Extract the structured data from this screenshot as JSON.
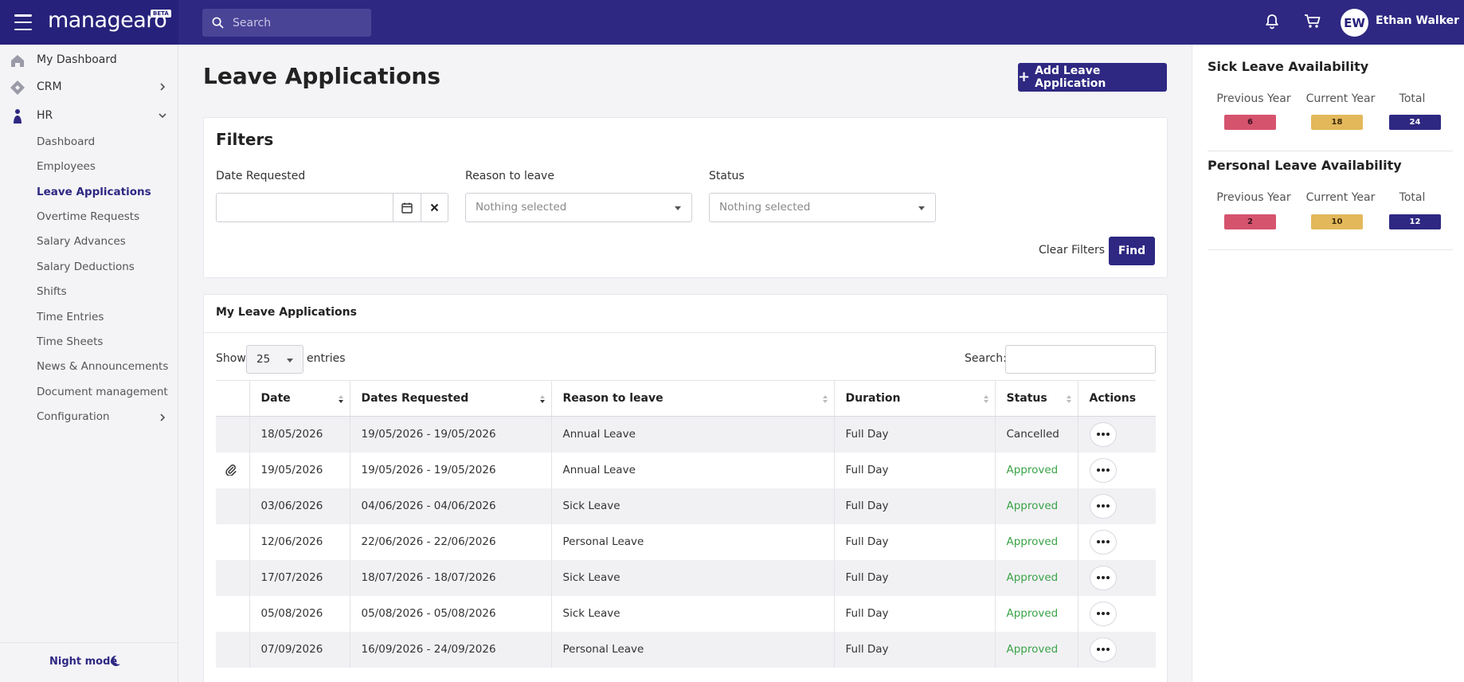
{
  "app": {
    "brand": "managearo",
    "beta": "BETA",
    "search_placeholder": "Search",
    "user_initials": "EW",
    "user_name": "Ethan Walker"
  },
  "sidebar": {
    "top_items": [
      {
        "label": "My Dashboard",
        "icon": "home-icon"
      },
      {
        "label": "CRM",
        "icon": "crm-icon"
      },
      {
        "label": "HR",
        "icon": "person-icon"
      }
    ],
    "hr_items": [
      {
        "label": "Dashboard"
      },
      {
        "label": "Employees"
      },
      {
        "label": "Leave Applications",
        "active": true
      },
      {
        "label": "Overtime Requests"
      },
      {
        "label": "Salary Advances"
      },
      {
        "label": "Salary Deductions"
      },
      {
        "label": "Shifts"
      },
      {
        "label": "Time Entries"
      },
      {
        "label": "Time Sheets"
      },
      {
        "label": "News & Announcements"
      },
      {
        "label": "Document management"
      },
      {
        "label": "Configuration"
      }
    ],
    "night_mode": "Night mode"
  },
  "main": {
    "title": "Leave Applications",
    "add_button": "Add Leave Application",
    "filters": {
      "title": "Filters",
      "date_label": "Date Requested",
      "reason_label": "Reason to leave",
      "reason_value": "Nothing selected",
      "status_label": "Status",
      "status_value": "Nothing selected",
      "clear": "Clear Filters",
      "find": "Find"
    },
    "table": {
      "title": "My Leave Applications",
      "show": "Show",
      "entries_value": "25",
      "entries": "entries",
      "search": "Search:",
      "columns": [
        "Date",
        "Dates Requested",
        "Reason to leave",
        "Duration",
        "Status",
        "Actions"
      ],
      "rows": [
        {
          "date": "18/05/2026",
          "requested": "19/05/2026 - 19/05/2026",
          "reason": "Annual Leave",
          "duration": "Full Day",
          "status": "Cancelled",
          "attachment": false
        },
        {
          "date": "19/05/2026",
          "requested": "19/05/2026 - 19/05/2026",
          "reason": "Annual Leave",
          "duration": "Full Day",
          "status": "Approved",
          "attachment": true
        },
        {
          "date": "03/06/2026",
          "requested": "04/06/2026 - 04/06/2026",
          "reason": "Sick Leave",
          "duration": "Full Day",
          "status": "Approved",
          "attachment": false
        },
        {
          "date": "12/06/2026",
          "requested": "22/06/2026 - 22/06/2026",
          "reason": "Personal Leave",
          "duration": "Full Day",
          "status": "Approved",
          "attachment": false
        },
        {
          "date": "17/07/2026",
          "requested": "18/07/2026 - 18/07/2026",
          "reason": "Sick Leave",
          "duration": "Full Day",
          "status": "Approved",
          "attachment": false
        },
        {
          "date": "05/08/2026",
          "requested": "05/08/2026 - 05/08/2026",
          "reason": "Sick Leave",
          "duration": "Full Day",
          "status": "Approved",
          "attachment": false
        },
        {
          "date": "07/09/2026",
          "requested": "16/09/2026 - 24/09/2026",
          "reason": "Personal Leave",
          "duration": "Full Day",
          "status": "Approved",
          "attachment": false
        }
      ]
    }
  },
  "availability": {
    "sick": {
      "title": "Sick Leave Availability",
      "labels": [
        "Previous Year",
        "Current Year",
        "Total"
      ],
      "values": [
        "6",
        "18",
        "24"
      ]
    },
    "personal": {
      "title": "Personal Leave Availability",
      "labels": [
        "Previous Year",
        "Current Year",
        "Total"
      ],
      "values": [
        "2",
        "10",
        "12"
      ]
    }
  },
  "colors": {
    "brand": "#2e2882",
    "approved": "#3aa348",
    "pill_red": "#d6536e",
    "pill_yellow": "#e3b85b",
    "pill_navy": "#2e2882"
  }
}
